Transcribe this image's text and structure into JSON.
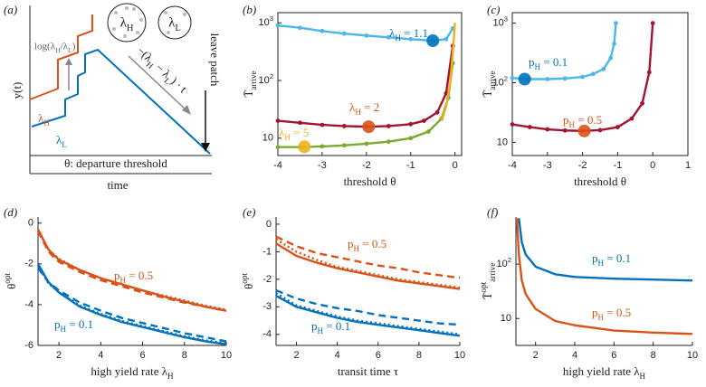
{
  "chart_data": [
    {
      "type": "schematic",
      "panel_label": "(a)",
      "annotations": [
        "log(λ_H/λ_L)",
        "−(λ_H − λ_L) · t",
        "leave patch",
        "y(t)",
        "λ_H",
        "λ_L",
        "θ: departure threshold",
        "time",
        "λ_H",
        "λ_L"
      ]
    },
    {
      "type": "line",
      "panel_label": "(b)",
      "y_label": "T̄_{arrive}",
      "x_label": "threshold θ",
      "xlim": [
        -4,
        0.15
      ],
      "xticks": [
        -4,
        -3,
        -2,
        -1,
        0
      ],
      "log_y": true,
      "box": true,
      "ylim": [
        5,
        1500
      ],
      "yticks": [
        {
          "value": 10,
          "label": "10"
        },
        {
          "value": 100,
          "label": "10^{2}"
        },
        {
          "value": 1000,
          "label": "10^{3}"
        }
      ],
      "series": [
        {
          "name": "λ_H = 1.1",
          "color": "#4db8e8",
          "markers": true,
          "x": [
            -4,
            -3.5,
            -3,
            -2.5,
            -2,
            -1.5,
            -1,
            -0.5,
            -0.2,
            -0.05
          ],
          "values": [
            900,
            820,
            720,
            650,
            600,
            560,
            520,
            490,
            520,
            800
          ],
          "optimum": {
            "x": -0.5,
            "y": 490
          },
          "optimum_color": "#0072bd"
        },
        {
          "name": "λ_H = 2",
          "color": "#a2142f",
          "markers": true,
          "x": [
            -4,
            -3.5,
            -3,
            -2.5,
            -2,
            -1.5,
            -1,
            -0.7,
            -0.4,
            -0.2,
            -0.05
          ],
          "values": [
            20,
            18.5,
            17,
            16.2,
            15.8,
            16.2,
            17.5,
            20,
            28,
            60,
            400
          ],
          "optimum": {
            "x": -1.95,
            "y": 15.8
          },
          "optimum_color": "#d95319"
        },
        {
          "name": "λ_H = 5",
          "color": "#77ac30",
          "markers": true,
          "x": [
            -4,
            -3.5,
            -3,
            -2.5,
            -2,
            -1.5,
            -1,
            -0.6,
            -0.3,
            -0.15,
            -0.05
          ],
          "values": [
            7,
            7,
            7.2,
            7.5,
            8,
            8.7,
            10,
            13,
            22,
            50,
            200
          ],
          "optimum": {
            "x": -3.4,
            "y": 7.1
          },
          "optimum_color": "#edb120"
        },
        {
          "color": "#edb120",
          "x": [
            -0.3,
            -0.2,
            -0.1,
            -0.05,
            0
          ],
          "values": [
            20,
            35,
            100,
            300,
            1000
          ]
        }
      ]
    },
    {
      "type": "line",
      "panel_label": "(c)",
      "y_label": "T̄_{arrive}",
      "x_label": "threshold θ",
      "xlim": [
        -4,
        1
      ],
      "xticks": [
        -4,
        -3,
        -2,
        -1,
        0,
        1
      ],
      "log_y": true,
      "box": true,
      "ylim": [
        6,
        1500
      ],
      "yticks": [
        {
          "value": 10,
          "label": "10"
        },
        {
          "value": 100,
          "label": "10^{2}"
        },
        {
          "value": 1000,
          "label": "10^{3}"
        }
      ],
      "series": [
        {
          "name": "p_H = 0.1",
          "color": "#4db8e8",
          "markers": true,
          "x": [
            -4,
            -3.5,
            -3,
            -2.5,
            -2,
            -1.7,
            -1.4,
            -1.2,
            -1.1,
            -1.05
          ],
          "values": [
            120,
            115,
            115,
            118,
            125,
            140,
            170,
            260,
            450,
            1000
          ],
          "optimum": {
            "x": -3.65,
            "y": 115
          },
          "optimum_color": "#0072bd"
        },
        {
          "name": "p_H = 0.5",
          "color": "#a2142f",
          "markers": true,
          "x": [
            -4,
            -3.5,
            -3,
            -2.5,
            -2,
            -1.5,
            -1,
            -0.6,
            -0.3,
            -0.1,
            0
          ],
          "values": [
            20,
            18,
            16.5,
            15.8,
            15.5,
            16,
            18,
            25,
            45,
            150,
            1000
          ],
          "optimum": {
            "x": -1.95,
            "y": 15.5
          },
          "optimum_color": "#d95319"
        }
      ]
    },
    {
      "type": "line",
      "panel_label": "(d)",
      "y_label": "θ^{opt}",
      "x_label": "high yield rate λ_H",
      "xlim": [
        1,
        10
      ],
      "xticks": [
        2,
        4,
        6,
        8,
        10
      ],
      "ylim": [
        -6,
        0.3
      ],
      "yticks": [
        0,
        -2,
        -4,
        -6
      ],
      "series": [
        {
          "name": "p_H = 0.5",
          "color": "#d95319",
          "dash": "solid",
          "x": [
            1,
            1.5,
            2,
            3,
            4,
            5,
            6,
            7,
            8,
            9,
            10
          ],
          "values": [
            -0.3,
            -1.3,
            -1.8,
            -2.3,
            -2.7,
            -3.0,
            -3.3,
            -3.6,
            -3.85,
            -4.1,
            -4.3
          ]
        },
        {
          "color": "#d95319",
          "dash": "dashed",
          "x": [
            1,
            1.5,
            2,
            3,
            4,
            5,
            6,
            7,
            8,
            9,
            10
          ],
          "values": [
            -0.4,
            -1.4,
            -1.9,
            -2.4,
            -2.8,
            -3.1,
            -3.4,
            -3.65,
            -3.9,
            -4.1,
            -4.3
          ]
        },
        {
          "color": "#d95319",
          "dash": "dotted",
          "x": [
            1,
            1.5,
            2,
            3,
            4,
            5,
            6,
            7,
            8,
            9,
            10
          ],
          "values": [
            -0.35,
            -1.3,
            -1.75,
            -2.3,
            -2.7,
            -3.0,
            -3.3,
            -3.55,
            -3.8,
            -4.05,
            -4.25
          ]
        },
        {
          "name": "p_H = 0.1",
          "color": "#0072bd",
          "dash": "solid",
          "x": [
            1,
            1.5,
            2,
            3,
            4,
            5,
            6,
            7,
            8,
            9,
            10
          ],
          "values": [
            -2.0,
            -2.9,
            -3.4,
            -4.1,
            -4.5,
            -4.85,
            -5.1,
            -5.35,
            -5.6,
            -5.8,
            -5.95
          ]
        },
        {
          "color": "#0072bd",
          "dash": "dashed",
          "x": [
            1,
            1.5,
            2,
            3,
            4,
            5,
            6,
            7,
            8,
            9,
            10
          ],
          "values": [
            -2.2,
            -2.9,
            -3.3,
            -3.9,
            -4.3,
            -4.65,
            -4.9,
            -5.15,
            -5.4,
            -5.6,
            -5.8
          ]
        },
        {
          "color": "#0072bd",
          "dash": "dotted",
          "x": [
            1,
            1.5,
            2,
            3,
            4,
            5,
            6,
            7,
            8,
            9,
            10
          ],
          "values": [
            -2.1,
            -2.95,
            -3.4,
            -4.05,
            -4.45,
            -4.8,
            -5.05,
            -5.3,
            -5.55,
            -5.75,
            -5.9
          ]
        }
      ]
    },
    {
      "type": "line",
      "panel_label": "(e)",
      "y_label": "θ^{opt}",
      "x_label": "transit time τ",
      "xlim": [
        1,
        10
      ],
      "xticks": [
        2,
        4,
        6,
        8,
        10
      ],
      "ylim": [
        -4.4,
        0.26
      ],
      "yticks": [
        0,
        -1,
        -2,
        -3,
        -4
      ],
      "series": [
        {
          "name": "p_H = 0.5",
          "color": "#d95319",
          "dash": "solid",
          "x": [
            1,
            2,
            3,
            4,
            5,
            6,
            7,
            8,
            9,
            10
          ],
          "values": [
            -0.7,
            -1.15,
            -1.4,
            -1.6,
            -1.75,
            -1.9,
            -2.05,
            -2.15,
            -2.25,
            -2.35
          ]
        },
        {
          "color": "#d95319",
          "dash": "dashed",
          "x": [
            1,
            2,
            3,
            4,
            5,
            6,
            7,
            8,
            9,
            10
          ],
          "values": [
            -0.45,
            -0.8,
            -1.05,
            -1.2,
            -1.35,
            -1.5,
            -1.6,
            -1.75,
            -1.85,
            -1.95
          ]
        },
        {
          "color": "#d95319",
          "dash": "dotted",
          "x": [
            1,
            2,
            3,
            4,
            5,
            6,
            7,
            8,
            9,
            10
          ],
          "values": [
            -0.55,
            -1.0,
            -1.3,
            -1.55,
            -1.7,
            -1.85,
            -2.0,
            -2.1,
            -2.2,
            -2.3
          ]
        },
        {
          "name": "p_H = 0.1",
          "color": "#0072bd",
          "dash": "solid",
          "x": [
            1,
            2,
            3,
            4,
            5,
            6,
            7,
            8,
            9,
            10
          ],
          "values": [
            -2.6,
            -3.0,
            -3.2,
            -3.4,
            -3.55,
            -3.65,
            -3.75,
            -3.85,
            -3.95,
            -4.05
          ]
        },
        {
          "color": "#0072bd",
          "dash": "dashed",
          "x": [
            1,
            2,
            3,
            4,
            5,
            6,
            7,
            8,
            9,
            10
          ],
          "values": [
            -2.4,
            -2.7,
            -2.9,
            -3.05,
            -3.15,
            -3.3,
            -3.4,
            -3.5,
            -3.6,
            -3.65
          ]
        },
        {
          "color": "#0072bd",
          "dash": "dotted",
          "x": [
            1,
            2,
            3,
            4,
            5,
            6,
            7,
            8,
            9,
            10
          ],
          "values": [
            -2.5,
            -2.95,
            -3.15,
            -3.35,
            -3.5,
            -3.6,
            -3.7,
            -3.8,
            -3.9,
            -4.0
          ]
        }
      ]
    },
    {
      "type": "line",
      "panel_label": "(f)",
      "y_label": "T̄^{opt}_{arrive}",
      "x_label": "high yield rate λ_H",
      "xlim": [
        1,
        10
      ],
      "xticks": [
        2,
        4,
        6,
        8,
        10
      ],
      "log_y": true,
      "ylim": [
        3.2,
        735
      ],
      "yticks": [
        {
          "value": 10,
          "label": "10"
        },
        {
          "value": 100,
          "label": "10^{2}"
        }
      ],
      "series": [
        {
          "name": "p_H = 0.1",
          "color": "#0072bd",
          "dash": "solid",
          "x": [
            1.15,
            1.3,
            1.5,
            2,
            3,
            4,
            6,
            8,
            10
          ],
          "values": [
            700,
            250,
            150,
            90,
            65,
            58,
            54,
            52,
            50
          ]
        },
        {
          "name": "p_H = 0.5",
          "color": "#d95319",
          "dash": "solid",
          "x": [
            1.05,
            1.15,
            1.3,
            1.5,
            2,
            3,
            4,
            6,
            8,
            10
          ],
          "values": [
            700,
            150,
            50,
            28,
            15,
            9,
            7.5,
            6,
            5.5,
            5.2
          ]
        }
      ]
    }
  ]
}
